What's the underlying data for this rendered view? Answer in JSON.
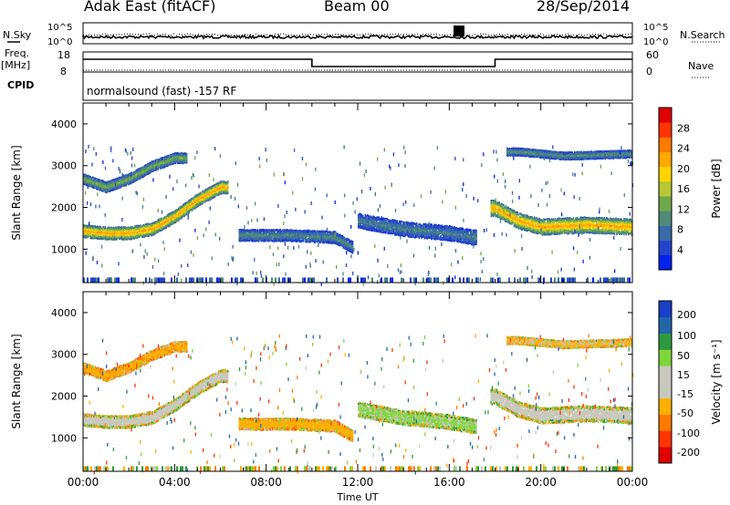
{
  "header": {
    "station": "Adak East (fitACF)",
    "beam": "Beam 00",
    "date": "28/Sep/2014"
  },
  "left_labels": {
    "nsky": "N.Sky",
    "freq_line1": "Freq.",
    "freq_line2": "[MHz]",
    "cpid": "CPID"
  },
  "right_labels": {
    "nsearch": "N.Search",
    "nave": "Nave"
  },
  "noise_axis": {
    "left_ticks": [
      "10^5",
      "10^0"
    ],
    "right_ticks": [
      "10^5",
      "10^0"
    ]
  },
  "freq_axis": {
    "left_ticks": [
      "18",
      "8"
    ],
    "right_ticks": [
      "60",
      "0"
    ]
  },
  "cpid_text": "normalsound (fast) -157 RF",
  "colors": {
    "power_scale": [
      "#0022ee",
      "#2244cc",
      "#3a6aa8",
      "#4f8a7a",
      "#6fa84a",
      "#b6c832",
      "#ffd400",
      "#ffa800",
      "#ff7a00",
      "#ff3300",
      "#e00000"
    ],
    "velocity_scale": [
      "#e00000",
      "#ff3300",
      "#ff7a00",
      "#ffb000",
      "#c8c8be",
      "#c8c8be",
      "#7fd63a",
      "#2e9a3e",
      "#2266aa",
      "#1a3fc8"
    ]
  },
  "chart_data": [
    {
      "type": "heatmap",
      "panel": "power",
      "title": "",
      "xlabel": "",
      "ylabel": "Slant Range [km]",
      "xlim": [
        "00:00",
        "24:00"
      ],
      "ylim": [
        200,
        4500
      ],
      "y_ticks": [
        "1000",
        "2000",
        "3000",
        "4000"
      ],
      "colorbar": {
        "label": "Power [dB]",
        "ticks": [
          "4",
          "8",
          "12",
          "16",
          "20",
          "24",
          "28"
        ],
        "range": [
          0,
          32
        ]
      },
      "echo_regions": [
        {
          "t_start": 0.0,
          "t_end": 6.3,
          "range_path": [
            [
              0,
              1450
            ],
            [
              1,
              1400
            ],
            [
              2,
              1400
            ],
            [
              3,
              1500
            ],
            [
              4,
              1800
            ],
            [
              5,
              2200
            ],
            [
              6,
              2500
            ]
          ],
          "width_km": 300,
          "power_dB": 24
        },
        {
          "t_start": 0.0,
          "t_end": 4.5,
          "range_path": [
            [
              0,
              2700
            ],
            [
              1,
              2500
            ],
            [
              2,
              2700
            ],
            [
              3,
              3000
            ],
            [
              4,
              3200
            ]
          ],
          "width_km": 250,
          "power_dB": 14
        },
        {
          "t_start": 6.8,
          "t_end": 11.8,
          "range_path": [
            [
              7,
              1350
            ],
            [
              9,
              1350
            ],
            [
              11,
              1300
            ],
            [
              11.8,
              1050
            ]
          ],
          "width_km": 280,
          "power_dB": 10
        },
        {
          "t_start": 12.0,
          "t_end": 17.2,
          "range_path": [
            [
              12,
              1700
            ],
            [
              14,
              1500
            ],
            [
              16,
              1400
            ],
            [
              17,
              1300
            ]
          ],
          "width_km": 350,
          "power_dB": 9
        },
        {
          "t_start": 17.8,
          "t_end": 24.0,
          "range_path": [
            [
              18,
              2000
            ],
            [
              19,
              1700
            ],
            [
              20,
              1550
            ],
            [
              22,
              1600
            ],
            [
              24,
              1550
            ]
          ],
          "width_km": 380,
          "power_dB": 24
        },
        {
          "t_start": 18.5,
          "t_end": 24.0,
          "range_path": [
            [
              19,
              3350
            ],
            [
              21,
              3250
            ],
            [
              24,
              3300
            ]
          ],
          "width_km": 180,
          "power_dB": 11
        }
      ]
    },
    {
      "type": "heatmap",
      "panel": "velocity",
      "title": "",
      "xlabel": "Time UT",
      "ylabel": "Slant Range [km]",
      "xlim": [
        "00:00",
        "24:00"
      ],
      "ylim": [
        200,
        4500
      ],
      "x_ticks": [
        "00:00",
        "04:00",
        "08:00",
        "12:00",
        "16:00",
        "20:00",
        "00:00"
      ],
      "y_ticks": [
        "1000",
        "2000",
        "3000",
        "4000"
      ],
      "colorbar": {
        "label": "Velocity [m s⁻¹]",
        "ticks": [
          "200",
          "100",
          "50",
          "15",
          "-15",
          "-50",
          "-100",
          "-200"
        ],
        "range": [
          -250,
          250
        ]
      },
      "echo_regions": [
        {
          "t_start": 0.0,
          "t_end": 6.3,
          "range_path": [
            [
              0,
              1450
            ],
            [
              1,
              1400
            ],
            [
              2,
              1400
            ],
            [
              3,
              1500
            ],
            [
              4,
              1800
            ],
            [
              5,
              2200
            ],
            [
              6,
              2500
            ]
          ],
          "width_km": 300,
          "velocity": 0
        },
        {
          "t_start": 0.0,
          "t_end": 4.5,
          "range_path": [
            [
              0,
              2700
            ],
            [
              1,
              2500
            ],
            [
              2,
              2700
            ],
            [
              3,
              3000
            ],
            [
              4,
              3200
            ]
          ],
          "width_km": 250,
          "velocity": -40
        },
        {
          "t_start": 6.8,
          "t_end": 11.8,
          "range_path": [
            [
              7,
              1350
            ],
            [
              9,
              1350
            ],
            [
              11,
              1300
            ],
            [
              11.8,
              1050
            ]
          ],
          "width_km": 280,
          "velocity": -30
        },
        {
          "t_start": 12.0,
          "t_end": 17.2,
          "range_path": [
            [
              12,
              1700
            ],
            [
              14,
              1500
            ],
            [
              16,
              1400
            ],
            [
              17,
              1300
            ]
          ],
          "width_km": 350,
          "velocity": 20
        },
        {
          "t_start": 17.8,
          "t_end": 24.0,
          "range_path": [
            [
              18,
              2000
            ],
            [
              19,
              1700
            ],
            [
              20,
              1550
            ],
            [
              22,
              1600
            ],
            [
              24,
              1550
            ]
          ],
          "width_km": 380,
          "velocity": 0
        },
        {
          "t_start": 18.5,
          "t_end": 24.0,
          "range_path": [
            [
              19,
              3350
            ],
            [
              21,
              3250
            ],
            [
              24,
              3300
            ]
          ],
          "width_km": 180,
          "velocity": -20
        }
      ]
    }
  ]
}
